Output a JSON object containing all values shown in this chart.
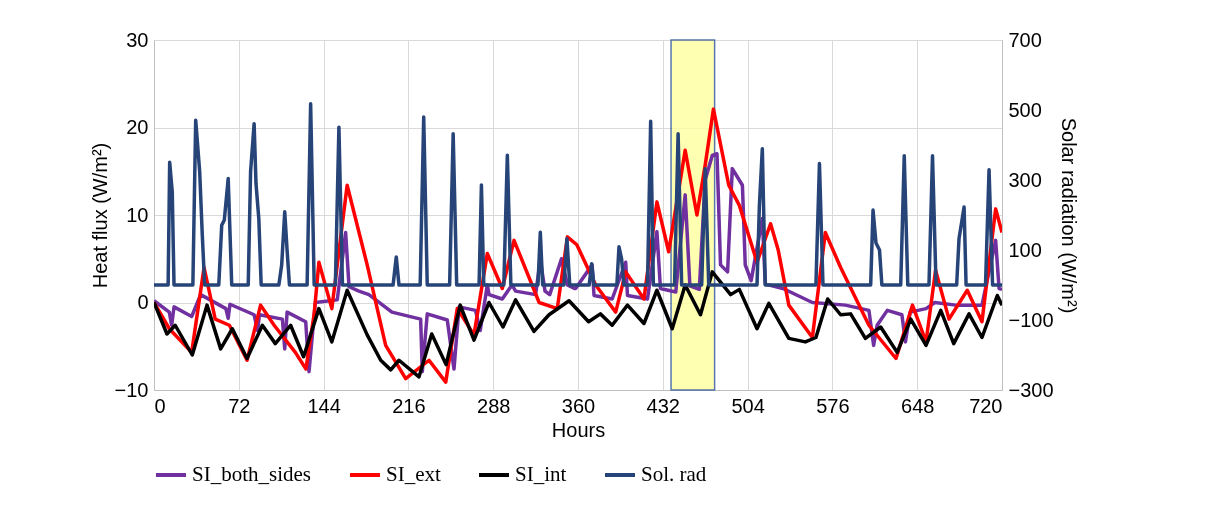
{
  "chart_data": {
    "type": "line",
    "xlabel": "Hours",
    "ylabel": "Heat flux (W/m²)",
    "y2label": "Solar radiation (W/m²)",
    "xlim": [
      0,
      720
    ],
    "xticks": [
      0,
      72,
      144,
      216,
      288,
      360,
      432,
      504,
      576,
      648,
      720
    ],
    "ylim": [
      -10,
      30
    ],
    "yticks": [
      -10,
      0,
      10,
      20,
      30
    ],
    "y2lim": [
      -300,
      700
    ],
    "y2ticks": [
      -300,
      -100,
      100,
      300,
      500,
      700
    ],
    "grid": true,
    "legend": "bottom",
    "line_style": "solid",
    "marker": "none",
    "bands": [
      {
        "axis": "x",
        "from": 439,
        "to": 476,
        "color": "#ffffa0"
      }
    ],
    "series": [
      {
        "name": "SI_both_sides",
        "color": "#7030a0",
        "x": [
          0,
          13,
          15,
          17,
          32,
          39.6,
          61,
          63,
          64.5,
          85,
          88,
          89.5,
          109,
          111,
          113,
          128.8,
          131.6,
          137,
          155.6,
          162.7,
          165.6,
          174,
          182.5,
          202,
          226.4,
          227.8,
          232,
          249,
          254.7,
          259,
          273,
          277,
          283,
          284.5,
          295.7,
          304,
          307,
          324,
          328,
          332,
          336,
          346,
          351,
          357,
          358,
          372,
          373.6,
          389,
          400.5,
          402,
          419,
          427,
          430,
          443,
          451,
          455,
          463,
          468,
          474,
          478,
          481,
          487,
          491,
          499.6,
          502,
          507,
          516.5,
          519,
          534,
          559,
          587,
          607,
          611,
          614,
          622.6,
          635,
          638,
          642,
          655.5,
          663,
          680.7,
          703,
          714.6,
          717.5,
          720
        ],
        "values": [
          0.2,
          -1.1,
          -2.6,
          -0.5,
          -1.6,
          0.9,
          -0.7,
          -1.8,
          -0.2,
          -1.4,
          -3.2,
          -1.4,
          -1.9,
          -5.3,
          -1.1,
          -2.2,
          -7.9,
          0,
          0.3,
          8,
          1.8,
          1.3,
          0.9,
          -1.1,
          -1.9,
          -7.9,
          -1.3,
          -2,
          -7.6,
          -0.5,
          -0.9,
          -3.2,
          2,
          0.9,
          0.4,
          2,
          1.3,
          0.9,
          4.9,
          1.3,
          0.9,
          5,
          2,
          1.6,
          1.6,
          4.3,
          0.8,
          0.4,
          4.6,
          0.8,
          0.4,
          8.1,
          1.6,
          1.2,
          12.3,
          1.9,
          1.5,
          14,
          16.8,
          17,
          4.3,
          3.5,
          15.3,
          13.4,
          4.3,
          2.5,
          9.6,
          2.1,
          1.6,
          0,
          -0.3,
          -0.9,
          -4.9,
          -2.6,
          -0.9,
          -1.4,
          -4.5,
          -1.1,
          -0.7,
          0,
          -0.3,
          -0.3,
          7.1,
          1.6,
          1.5
        ]
      },
      {
        "name": "SI_ext",
        "color": "#ff0000",
        "x": [
          0,
          13,
          32,
          42.5,
          52,
          64,
          79,
          90.5,
          102,
          120,
          129,
          136,
          140,
          151,
          164,
          181,
          196.7,
          213.7,
          233.5,
          247.7,
          257.5,
          271.7,
          283,
          295.7,
          305.7,
          327,
          342.4,
          351,
          359,
          375,
          392,
          400.5,
          416,
          427,
          437,
          451,
          461,
          468,
          475,
          488,
          497,
          512,
          523.5,
          530,
          539,
          559,
          570,
          583,
          607,
          630,
          644,
          655.5,
          663.6,
          675,
          690.5,
          703,
          714.6,
          720
        ],
        "values": [
          0,
          -3,
          -5.7,
          4,
          -1.9,
          -2.6,
          -6.6,
          -0.3,
          -2.6,
          -5.7,
          -7.6,
          -1.3,
          4.6,
          -0.7,
          13.4,
          4.3,
          -4.9,
          -8.7,
          -6.6,
          -9.1,
          -0.7,
          -3.7,
          5.6,
          1.6,
          7.1,
          0,
          -0.7,
          7.5,
          6.6,
          2,
          -1.1,
          3.5,
          0.4,
          11.5,
          5.8,
          17.4,
          10,
          15.7,
          22.1,
          13.4,
          11.1,
          4.6,
          9,
          6,
          -0.3,
          -4,
          8,
          4,
          -2.6,
          -6.4,
          -0.3,
          -4.5,
          3.7,
          -1.9,
          1.4,
          -2.2,
          10.7,
          8
        ]
      },
      {
        "name": "SI_int",
        "color": "#000000",
        "x": [
          0,
          11,
          18,
          32.5,
          45,
          56.6,
          66.5,
          79,
          92,
          103,
          116,
          127,
          140,
          151,
          164,
          181,
          192.5,
          201,
          208,
          225,
          235.8,
          248,
          260,
          271.7,
          284.4,
          296.3,
          307,
          322.6,
          335.4,
          352.4,
          369,
          379,
          389,
          402,
          416,
          427,
          440,
          451,
          464,
          474,
          489.6,
          497,
          512,
          522,
          539,
          553,
          562,
          572,
          583,
          591.5,
          604,
          617,
          631,
          642.5,
          655.5,
          668,
          679,
          692,
          703,
          716,
          720
        ],
        "values": [
          0,
          -3.6,
          -2.6,
          -6,
          -0.3,
          -5.3,
          -3,
          -6.4,
          -2.6,
          -4.7,
          -2.6,
          -6.2,
          -0.7,
          -4.5,
          1.4,
          -3.7,
          -6.6,
          -7.7,
          -6.6,
          -8.5,
          -3.6,
          -7.1,
          -0.3,
          -4.3,
          0,
          -2.8,
          0.3,
          -3.3,
          -1.4,
          0.2,
          -2.2,
          -1.3,
          -2.6,
          -0.3,
          -2.4,
          1.4,
          -3,
          2,
          -1.4,
          3.5,
          0.9,
          1.5,
          -3,
          -0.1,
          -4.1,
          -4.5,
          -4,
          0.4,
          -1.4,
          -1.3,
          -4.1,
          -2.8,
          -5.7,
          -1.9,
          -4.9,
          -0.9,
          -4.7,
          -1.3,
          -4,
          0.8,
          -0.3
        ]
      },
      {
        "name": "Sol. rad",
        "color": "#264478",
        "axis": "y2",
        "x": [
          0,
          12,
          13.3,
          15.5,
          17,
          33,
          35.4,
          38.8,
          41,
          43,
          55,
          57.5,
          59.7,
          63,
          66,
          80,
          82,
          85,
          86.6,
          89,
          91,
          106,
          108.4,
          111,
          113,
          115,
          130,
          133,
          136,
          154,
          157,
          160,
          203,
          205.7,
          208,
          226,
          229,
          232,
          251,
          254,
          257,
          276,
          278,
          280,
          297,
          300,
          303,
          326,
          328,
          330,
          348,
          350.6,
          353,
          369.5,
          371.6,
          373.5,
          393,
          394.8,
          397,
          399,
          419,
          421.7,
          424,
          442,
          445,
          448,
          465,
          468,
          471,
          512,
          514,
          516.5,
          519,
          562,
          565,
          568,
          608.5,
          610.5,
          613,
          616,
          618,
          634,
          637,
          640,
          658,
          661,
          664,
          681.5,
          683.5,
          687.8,
          689.5,
          706,
          709,
          712,
          720
        ],
        "values": [
          0,
          0,
          351,
          266,
          0,
          0,
          471,
          323,
          143,
          0,
          0,
          171,
          186,
          304,
          0,
          0,
          323,
          461,
          290,
          189,
          0,
          0,
          57,
          209,
          100,
          0,
          0,
          518,
          0,
          0,
          451,
          0,
          0,
          80,
          0,
          0,
          480,
          0,
          0,
          432,
          0,
          0,
          286,
          0,
          0,
          371,
          0,
          0,
          151,
          0,
          0,
          132,
          0,
          0,
          61,
          0,
          0,
          109,
          75,
          0,
          0,
          468,
          0,
          0,
          432,
          0,
          0,
          332,
          0,
          0,
          227,
          389,
          0,
          0,
          347,
          0,
          0,
          214,
          120,
          100,
          0,
          0,
          369,
          0,
          0,
          369,
          0,
          0,
          132,
          223,
          0,
          0,
          329,
          0,
          0
        ]
      }
    ]
  }
}
